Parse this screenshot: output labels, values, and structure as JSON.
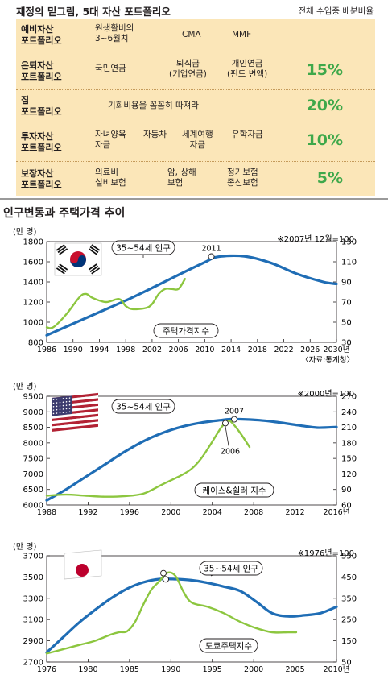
{
  "table": {
    "title": "재정의 밑그림, 5대 자산 포트폴리오",
    "caption": "전체 수입중 배분비율",
    "rows": [
      {
        "category": "예비자산\n포트폴리오",
        "items": [
          "원생활비의\n3~6월치",
          "CMA",
          "MMF"
        ],
        "percent": ""
      },
      {
        "category": "은퇴자산\n포트폴리오",
        "items": [
          "국민연금",
          "퇴직금\n(기업연금)",
          "개인연금\n(펀드 변액)"
        ],
        "percent": "15%"
      },
      {
        "category": "집\n포트폴리오",
        "items": [
          "기회비용을 꼼꼼히 따져라"
        ],
        "percent": "20%"
      },
      {
        "category": "투자자산\n포트폴리오",
        "items": [
          "자녀양육\n자금",
          "자동차",
          "세계여행\n자금",
          "유학자금"
        ],
        "percent": "10%"
      },
      {
        "category": "보장자산\n포트폴리오",
        "items": [
          "의료비\n실비보험",
          "암, 상해\n보험",
          "정기보험\n종신보험"
        ],
        "percent": "5%"
      }
    ]
  },
  "section_title": "인구변동과 주택가격 추이",
  "colors": {
    "population": "#1f6db5",
    "price": "#8cc63f",
    "table_bg": "#fbe6b8",
    "percent": "#3ea84a"
  },
  "chart_data": [
    {
      "type": "line",
      "country": "korea",
      "flag_icon": "korea-flag-icon",
      "left_unit": "(만 명)",
      "index_note": "※2007년 12월=100",
      "source": "〈자료:통계청〉",
      "xlim": [
        1986,
        2030
      ],
      "xticks": [
        "1986",
        "1990",
        "1994",
        "1998",
        "2002",
        "2006",
        "2010",
        "2014",
        "2018",
        "2022",
        "2026",
        "2030년"
      ],
      "ylim_left": [
        800,
        1800
      ],
      "yticks_left": [
        "800",
        "1000",
        "1200",
        "1400",
        "1600",
        "1800"
      ],
      "ylim_right": [
        30,
        130
      ],
      "yticks_right": [
        "30",
        "50",
        "70",
        "90",
        "110",
        "130"
      ],
      "series": [
        {
          "name": "35~54세 인구",
          "axis": "left",
          "x": [
            1986,
            1990,
            1994,
            1998,
            2002,
            2006,
            2010,
            2012,
            2016,
            2020,
            2024,
            2028,
            2030
          ],
          "y": [
            870,
            985,
            1100,
            1215,
            1340,
            1470,
            1595,
            1650,
            1655,
            1590,
            1480,
            1400,
            1380
          ]
        },
        {
          "name": "주택가격지수",
          "axis": "right",
          "x": [
            1986,
            1987,
            1989,
            1991,
            1992,
            1993,
            1995,
            1997,
            1998,
            1999,
            2001,
            2002,
            2003,
            2004,
            2005,
            2006,
            2007
          ],
          "y": [
            45,
            45,
            58,
            75,
            78,
            74,
            70,
            73,
            66,
            63,
            64,
            68,
            78,
            83,
            83,
            83,
            93
          ]
        }
      ],
      "annotations": [
        {
          "label": "2011",
          "x": 2011
        }
      ]
    },
    {
      "type": "line",
      "country": "usa",
      "flag_icon": "usa-flag-icon",
      "left_unit": "(만 명)",
      "index_note": "※2000년=100",
      "xlim": [
        1988,
        2018
      ],
      "xticks": [
        "1988",
        "1992",
        "1996",
        "2000",
        "2004",
        "2008",
        "2012",
        "2016년"
      ],
      "ylim_left": [
        6000,
        9500
      ],
      "yticks_left": [
        "6000",
        "6500",
        "7000",
        "7500",
        "8000",
        "8500",
        "9000",
        "9500"
      ],
      "ylim_right": [
        60,
        270
      ],
      "yticks_right": [
        "60",
        "90",
        "120",
        "150",
        "180",
        "210",
        "240",
        "270"
      ],
      "series": [
        {
          "name": "35~54세 인구",
          "axis": "left",
          "x": [
            1988,
            1990,
            1992,
            1994,
            1996,
            1998,
            2000,
            2002,
            2004,
            2006,
            2007,
            2008,
            2010,
            2012,
            2014,
            2016,
            2018
          ],
          "y": [
            6150,
            6500,
            6900,
            7300,
            7700,
            8050,
            8320,
            8520,
            8650,
            8730,
            8760,
            8760,
            8730,
            8660,
            8570,
            8490,
            8510
          ]
        },
        {
          "name": "케이스&쉴러 지수",
          "axis": "right",
          "x": [
            1988,
            1990,
            1992,
            1994,
            1996,
            1998,
            2000,
            2002,
            2003,
            2004,
            2005,
            2006,
            2006.5,
            2007,
            2008,
            2009
          ],
          "y": [
            78,
            80,
            78,
            76,
            77,
            82,
            100,
            118,
            130,
            150,
            178,
            208,
            218,
            222,
            200,
            172
          ]
        }
      ],
      "annotations": [
        {
          "label": "2007",
          "x": 2007
        },
        {
          "label": "2006",
          "x": 2006.5
        }
      ]
    },
    {
      "type": "line",
      "country": "japan",
      "flag_icon": "japan-flag-icon",
      "left_unit": "(만 명)",
      "index_note": "※1976년=100",
      "xlim": [
        1976,
        2012
      ],
      "xticks": [
        "1976",
        "1980",
        "1985",
        "1990",
        "1995",
        "2000",
        "2005",
        "2010년"
      ],
      "ylim_left": [
        2700,
        3700
      ],
      "yticks_left": [
        "2700",
        "2900",
        "3100",
        "3300",
        "3500",
        "3700"
      ],
      "ylim_right": [
        50,
        550
      ],
      "yticks_right": [
        "50",
        "150",
        "250",
        "350",
        "450",
        "550"
      ],
      "series": [
        {
          "name": "35~54세 인구",
          "axis": "left",
          "x": [
            1976,
            1978,
            1980,
            1982,
            1984,
            1986,
            1988,
            1990,
            1992,
            1994,
            1996,
            1998,
            2000,
            2002,
            2004,
            2006,
            2008,
            2010,
            2012
          ],
          "y": [
            2790,
            2930,
            3070,
            3190,
            3300,
            3390,
            3450,
            3480,
            3480,
            3470,
            3445,
            3410,
            3370,
            3270,
            3160,
            3130,
            3140,
            3160,
            3220
          ]
        },
        {
          "name": "도쿄주택지수",
          "axis": "right",
          "x": [
            1976,
            1978,
            1980,
            1982,
            1984,
            1985,
            1986,
            1987,
            1988,
            1989,
            1990,
            1991,
            1992,
            1993,
            1994,
            1996,
            1998,
            2000,
            2002,
            2004,
            2006,
            2007
          ],
          "y": [
            90,
            110,
            130,
            150,
            180,
            190,
            195,
            240,
            320,
            390,
            430,
            470,
            455,
            380,
            330,
            310,
            280,
            240,
            210,
            190,
            190,
            190
          ]
        }
      ],
      "annotations": []
    }
  ]
}
